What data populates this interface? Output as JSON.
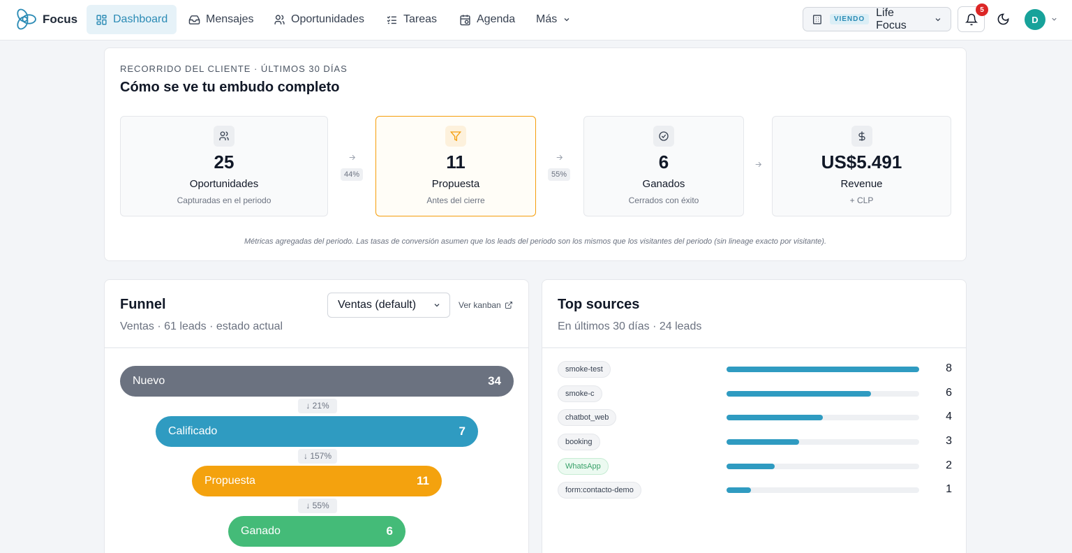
{
  "nav": {
    "brand": "Focus",
    "items": [
      {
        "label": "Dashboard",
        "icon": "dashboard-icon",
        "active": true
      },
      {
        "label": "Mensajes",
        "icon": "inbox-icon"
      },
      {
        "label": "Oportunidades",
        "icon": "users-icon"
      },
      {
        "label": "Tareas",
        "icon": "checklist-icon"
      },
      {
        "label": "Agenda",
        "icon": "calendar-icon"
      },
      {
        "label": "Más",
        "icon": "chevron-down-icon"
      }
    ],
    "viewing_badge": "VIENDO",
    "viewing_name": "Life Focus",
    "notifications": "5",
    "avatar_initial": "D"
  },
  "journey": {
    "eyebrow": "RECORRIDO DEL CLIENTE · ÚLTIMOS 30 DÍAS",
    "title": "Cómo se ve tu embudo completo",
    "stages": [
      {
        "value": "25",
        "label": "Oportunidades",
        "sub": "Capturadas en el periodo",
        "icon": "users-icon"
      },
      {
        "value": "11",
        "label": "Propuesta",
        "sub": "Antes del cierre",
        "icon": "filter-icon"
      },
      {
        "value": "6",
        "label": "Ganados",
        "sub": "Cerrados con éxito",
        "icon": "check-circle-icon"
      },
      {
        "value": "US$5.491",
        "label": "Revenue",
        "sub": "+ CLP",
        "icon": "dollar-icon"
      }
    ],
    "conversions": [
      "44%",
      "55%",
      ""
    ],
    "note": "Métricas agregadas del periodo. Las tasas de conversión asumen que los leads del periodo son los mismos que los visitantes del periodo (sin lineage exacto por visitante)."
  },
  "funnel": {
    "title": "Funnel",
    "subtitle": "Ventas · 61 leads · estado actual",
    "pipeline_select": "Ventas (default)",
    "kanban_link": "Ver kanban",
    "stages": [
      {
        "label": "Nuevo",
        "value": "34",
        "color": "#6b7280"
      },
      {
        "label": "Calificado",
        "value": "7",
        "color": "#2f9bc1"
      },
      {
        "label": "Propuesta",
        "value": "11",
        "color": "#f4a20e"
      },
      {
        "label": "Ganado",
        "value": "6",
        "color": "#44bb78"
      }
    ],
    "drops": [
      "↓ 21%",
      "↓ 157%",
      "↓ 55%"
    ]
  },
  "sources": {
    "title": "Top sources",
    "subtitle": "En últimos 30 días · 24 leads",
    "max": 8,
    "items": [
      {
        "name": "smoke-test",
        "count": 8
      },
      {
        "name": "smoke-c",
        "count": 6
      },
      {
        "name": "chatbot_web",
        "count": 4
      },
      {
        "name": "booking",
        "count": 3
      },
      {
        "name": "WhatsApp",
        "count": 2,
        "green": true
      },
      {
        "name": "form:contacto-demo",
        "count": 1
      }
    ]
  }
}
